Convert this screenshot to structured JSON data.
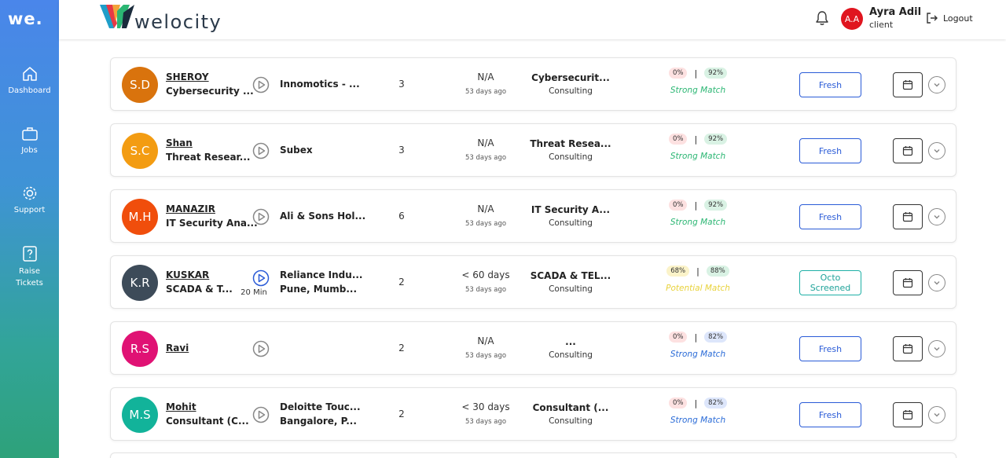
{
  "sidebar": {
    "logo": "we.",
    "items": [
      {
        "label": "Dashboard",
        "icon": "home-icon"
      },
      {
        "label": "Jobs",
        "icon": "briefcase-icon"
      },
      {
        "label": "Support",
        "icon": "gear-icon"
      },
      {
        "label_line1": "Raise",
        "label_line2": "Tickets",
        "icon": "question-icon"
      }
    ]
  },
  "header": {
    "brand": "welocity",
    "user": {
      "initials": "A.A",
      "name": "Ayra Adil",
      "role": "client"
    },
    "logout_label": "Logout"
  },
  "candidates": [
    {
      "initials": "S.D",
      "avatar_color": "#d9730d",
      "name": "SHEROY",
      "role": "Cybersecurity ...",
      "company": "Innomotics - ...",
      "location": "",
      "count": "3",
      "notice": "N/A",
      "ago": "53 days ago",
      "job": "Cybersecurit...",
      "job_type": "Consulting",
      "score1": "0%",
      "score2": "92%",
      "match": "Strong Match",
      "status": "Fresh",
      "video": false,
      "video_duration": ""
    },
    {
      "initials": "S.C",
      "avatar_color": "#f39c12",
      "name": "Shan",
      "role": "Threat Resear...",
      "company": "Subex",
      "location": "",
      "count": "3",
      "notice": "N/A",
      "ago": "53 days ago",
      "job": "Threat Resea...",
      "job_type": "Consulting",
      "score1": "0%",
      "score2": "92%",
      "match": "Strong Match",
      "status": "Fresh",
      "video": false,
      "video_duration": ""
    },
    {
      "initials": "M.H",
      "avatar_color": "#f04e0c",
      "name": "MANAZIR",
      "role": "IT Security Ana...",
      "company": "Ali & Sons Hol...",
      "location": "",
      "count": "6",
      "notice": "N/A",
      "ago": "53 days ago",
      "job": "IT Security A...",
      "job_type": "Consulting",
      "score1": "0%",
      "score2": "92%",
      "match": "Strong Match",
      "status": "Fresh",
      "video": false,
      "video_duration": ""
    },
    {
      "initials": "K.R",
      "avatar_color": "#3d4b59",
      "name": "KUSKAR",
      "role": "SCADA & T...",
      "company": "Reliance Indu...",
      "location": "Pune, Mumb...",
      "count": "2",
      "notice": "< 60 days",
      "ago": "53 days ago",
      "job": "SCADA & TEL...",
      "job_type": "Consulting",
      "score1": "68%",
      "score2": "88%",
      "match": "Potential Match",
      "status_line1": "Octo",
      "status_line2": "Screened",
      "video": true,
      "video_duration": "20 Min"
    },
    {
      "initials": "R.S",
      "avatar_color": "#e01274",
      "name": "Ravi",
      "role": "",
      "company": "",
      "location": "",
      "count": "2",
      "notice": "N/A",
      "ago": "53 days ago",
      "job": "...",
      "job_type": "Consulting",
      "score1": "0%",
      "score2": "82%",
      "match": "Strong Match",
      "status": "Fresh",
      "video": false,
      "video_duration": ""
    },
    {
      "initials": "M.S",
      "avatar_color": "#12b39a",
      "name": "Mohit",
      "role": "Consultant (C...",
      "company": "Deloitte Touc...",
      "location": "Bangalore, P...",
      "count": "2",
      "notice": "< 30 days",
      "ago": "53 days ago",
      "job": "Consultant (...",
      "job_type": "Consulting",
      "score1": "0%",
      "score2": "82%",
      "match": "Strong Match",
      "status": "Fresh",
      "video": false,
      "video_duration": ""
    }
  ],
  "colors": {
    "strong_match": "#2bb673",
    "strong_match_blue": "#2a6bd7",
    "potential_match": "#e8d23a",
    "fresh_border": "#2a5bd7",
    "octo_border": "#1fb0a6"
  }
}
